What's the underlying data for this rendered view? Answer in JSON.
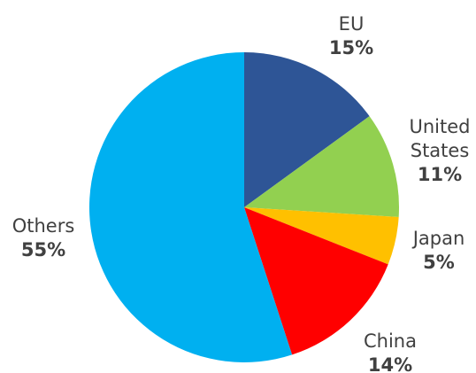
{
  "chart_data": {
    "type": "pie",
    "title": "",
    "slices": [
      {
        "name": "EU",
        "value": 15,
        "label": "15%",
        "color": "#2e5596"
      },
      {
        "name": "United States",
        "value": 11,
        "label": "11%",
        "color": "#92d050"
      },
      {
        "name": "Japan",
        "value": 5,
        "label": "5%",
        "color": "#ffc000"
      },
      {
        "name": "China",
        "value": 14,
        "label": "14%",
        "color": "#ff0000"
      },
      {
        "name": "Others",
        "value": 55,
        "label": "55%",
        "color": "#00b0f0"
      }
    ],
    "start": "12 o'clock",
    "direction": "clockwise",
    "legend": "none",
    "data_labels": "outside, category name and percentage"
  }
}
